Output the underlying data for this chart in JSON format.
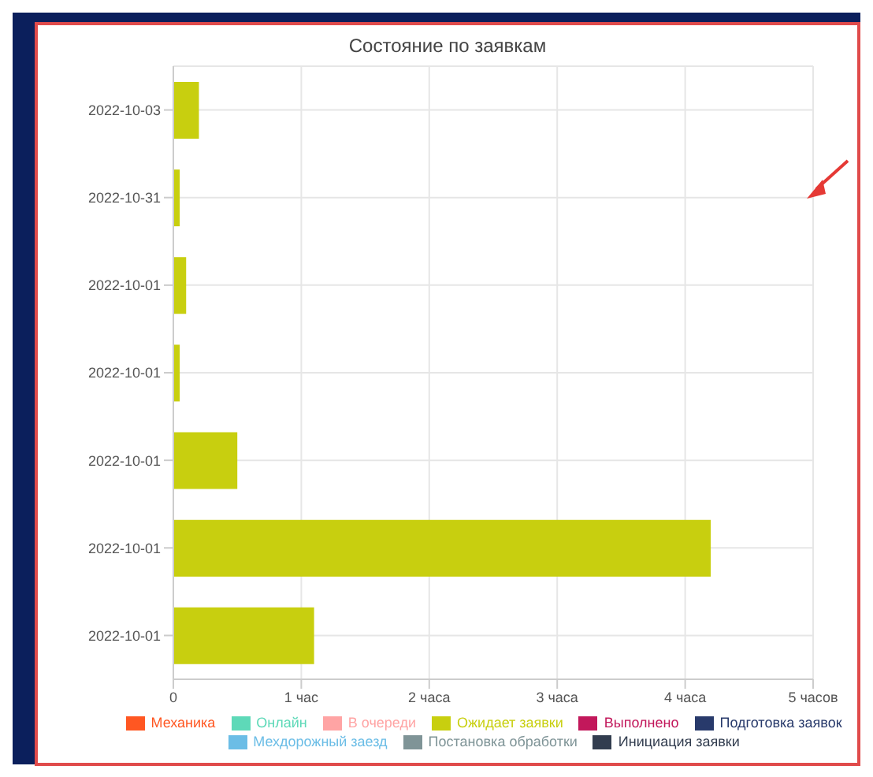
{
  "chart_data": {
    "type": "bar",
    "orientation": "horizontal",
    "stacked": true,
    "title": "Состояние по заявкам",
    "categories": [
      "2022-10-03",
      "2022-10-31",
      "2022-10-01",
      "2022-10-01",
      "2022-10-01",
      "2022-10-01",
      "2022-10-01"
    ],
    "series": [
      {
        "name": "Механика",
        "color": "#ff5722",
        "values": [
          0,
          0,
          0,
          0,
          0,
          0,
          0
        ]
      },
      {
        "name": "Онлайн",
        "color": "#5ed9b8",
        "values": [
          0,
          0,
          0,
          0,
          0,
          0,
          0
        ]
      },
      {
        "name": "В очереди",
        "color": "#ffa4a4",
        "values": [
          0,
          0,
          0,
          0,
          0,
          0,
          0
        ]
      },
      {
        "name": "Ожидает заявки",
        "color": "#c8cf0f",
        "values": [
          0.2,
          0.05,
          0.1,
          0.05,
          0.5,
          4.2,
          1.1
        ]
      },
      {
        "name": "Выполнено",
        "color": "#c2185b",
        "values": [
          0,
          0,
          0,
          0,
          0,
          0,
          0
        ]
      },
      {
        "name": "Подготовка заявок",
        "color": "#283a6b",
        "values": [
          0,
          0,
          0,
          0,
          0,
          0,
          0
        ]
      },
      {
        "name": "Мехдорожный заезд",
        "color": "#6bbde6",
        "values": [
          0,
          0,
          0,
          0,
          0,
          0,
          0
        ]
      },
      {
        "name": "Постановка обработки",
        "color": "#7f9497",
        "values": [
          0,
          0,
          0,
          0,
          0,
          0,
          0
        ]
      },
      {
        "name": "Инициация заявки",
        "color": "#323d4f",
        "values": [
          0,
          0,
          0,
          0,
          0,
          0,
          0
        ]
      }
    ],
    "xlim": [
      0,
      5
    ],
    "xticks": [
      0,
      {
        "value": 1,
        "label": "1 час"
      },
      {
        "value": 2,
        "label": "2 часа"
      },
      {
        "value": 3,
        "label": "3 часа"
      },
      {
        "value": 4,
        "label": "4 часа"
      },
      {
        "value": 5,
        "label": "5 часов"
      }
    ],
    "grid": true,
    "legend": "bottom"
  }
}
